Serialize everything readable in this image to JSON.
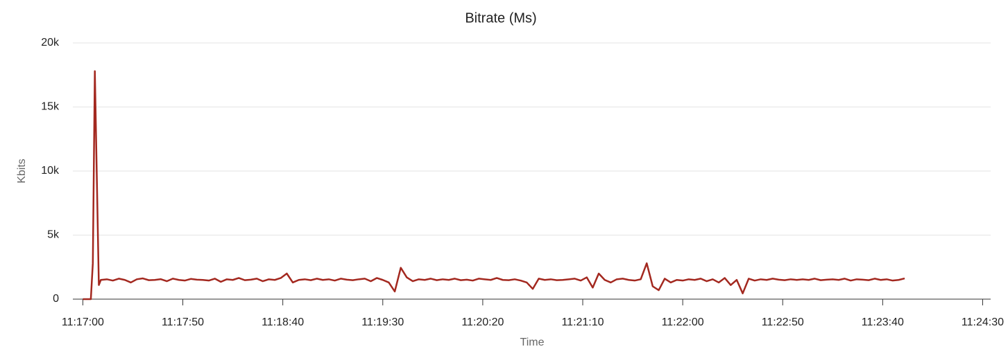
{
  "chart_data": {
    "type": "line",
    "title": "Bitrate (Ms)",
    "x_label": "Time",
    "y_label": "Kbits",
    "color": "#a3281f",
    "grid": true,
    "xlim": [
      "11:16:55",
      "11:24:34"
    ],
    "xticks": [
      "11:17:00",
      "11:17:50",
      "11:18:40",
      "11:19:30",
      "11:20:20",
      "11:21:10",
      "11:22:00",
      "11:22:50",
      "11:23:40",
      "11:24:30"
    ],
    "ylim": [
      0,
      20000
    ],
    "yticks": [
      0,
      {
        "value": 5000,
        "label": "5k"
      },
      {
        "value": 10000,
        "label": "10k"
      },
      {
        "value": 15000,
        "label": "15k"
      },
      {
        "value": 20000,
        "label": "20k"
      }
    ],
    "x": [
      "11:17:00",
      "11:17:04",
      "11:17:05",
      "11:17:06",
      "11:17:08",
      "11:17:09",
      "11:17:12",
      "11:17:15",
      "11:17:18",
      "11:17:21",
      "11:17:24",
      "11:17:27",
      "11:17:30",
      "11:17:33",
      "11:17:36",
      "11:17:39",
      "11:17:42",
      "11:17:45",
      "11:17:48",
      "11:17:51",
      "11:17:54",
      "11:17:57",
      "11:18:00",
      "11:18:03",
      "11:18:06",
      "11:18:09",
      "11:18:12",
      "11:18:15",
      "11:18:18",
      "11:18:21",
      "11:18:24",
      "11:18:27",
      "11:18:30",
      "11:18:33",
      "11:18:36",
      "11:18:39",
      "11:18:42",
      "11:18:45",
      "11:18:48",
      "11:18:51",
      "11:18:54",
      "11:18:57",
      "11:19:00",
      "11:19:03",
      "11:19:06",
      "11:19:09",
      "11:19:12",
      "11:19:15",
      "11:19:18",
      "11:19:21",
      "11:19:24",
      "11:19:27",
      "11:19:30",
      "11:19:33",
      "11:19:36",
      "11:19:39",
      "11:19:42",
      "11:19:45",
      "11:19:48",
      "11:19:51",
      "11:19:54",
      "11:19:57",
      "11:20:00",
      "11:20:03",
      "11:20:06",
      "11:20:09",
      "11:20:12",
      "11:20:15",
      "11:20:18",
      "11:20:21",
      "11:20:24",
      "11:20:27",
      "11:20:30",
      "11:20:33",
      "11:20:36",
      "11:20:39",
      "11:20:42",
      "11:20:45",
      "11:20:48",
      "11:20:51",
      "11:20:54",
      "11:20:57",
      "11:21:00",
      "11:21:03",
      "11:21:06",
      "11:21:09",
      "11:21:12",
      "11:21:15",
      "11:21:18",
      "11:21:21",
      "11:21:24",
      "11:21:27",
      "11:21:30",
      "11:21:33",
      "11:21:36",
      "11:21:39",
      "11:21:42",
      "11:21:45",
      "11:21:48",
      "11:21:51",
      "11:21:54",
      "11:21:57",
      "11:22:00",
      "11:22:03",
      "11:22:06",
      "11:22:09",
      "11:22:12",
      "11:22:15",
      "11:22:18",
      "11:22:21",
      "11:22:24",
      "11:22:27",
      "11:22:30",
      "11:22:33",
      "11:22:36",
      "11:22:39",
      "11:22:42",
      "11:22:45",
      "11:22:48",
      "11:22:51",
      "11:22:54",
      "11:22:57",
      "11:23:00",
      "11:23:03",
      "11:23:06",
      "11:23:09",
      "11:23:12",
      "11:23:15",
      "11:23:18",
      "11:23:21",
      "11:23:24",
      "11:23:27",
      "11:23:30",
      "11:23:33",
      "11:23:36",
      "11:23:39",
      "11:23:42",
      "11:23:45",
      "11:23:48",
      "11:23:51"
    ],
    "values": [
      0,
      0,
      2800,
      17800,
      1100,
      1500,
      1550,
      1450,
      1600,
      1500,
      1300,
      1550,
      1620,
      1480,
      1500,
      1560,
      1400,
      1600,
      1500,
      1450,
      1580,
      1520,
      1500,
      1450,
      1600,
      1350,
      1550,
      1500,
      1650,
      1480,
      1520,
      1600,
      1400,
      1550,
      1500,
      1650,
      2000,
      1300,
      1500,
      1550,
      1480,
      1600,
      1500,
      1550,
      1450,
      1600,
      1520,
      1480,
      1550,
      1600,
      1400,
      1650,
      1500,
      1300,
      600,
      2450,
      1700,
      1400,
      1550,
      1500,
      1600,
      1480,
      1550,
      1500,
      1600,
      1480,
      1520,
      1450,
      1600,
      1550,
      1500,
      1650,
      1500,
      1480,
      1550,
      1450,
      1300,
      800,
      1600,
      1500,
      1550,
      1480,
      1500,
      1550,
      1600,
      1450,
      1700,
      900,
      2000,
      1500,
      1300,
      1550,
      1600,
      1500,
      1450,
      1550,
      2800,
      1000,
      700,
      1600,
      1300,
      1500,
      1450,
      1550,
      1500,
      1600,
      1400,
      1550,
      1300,
      1650,
      1100,
      1500,
      450,
      1600,
      1450,
      1550,
      1500,
      1600,
      1520,
      1480,
      1550,
      1500,
      1550,
      1500,
      1600,
      1480,
      1520,
      1550,
      1500,
      1600,
      1450,
      1550,
      1520,
      1480,
      1600,
      1500,
      1550,
      1450,
      1500,
      1620
    ]
  }
}
